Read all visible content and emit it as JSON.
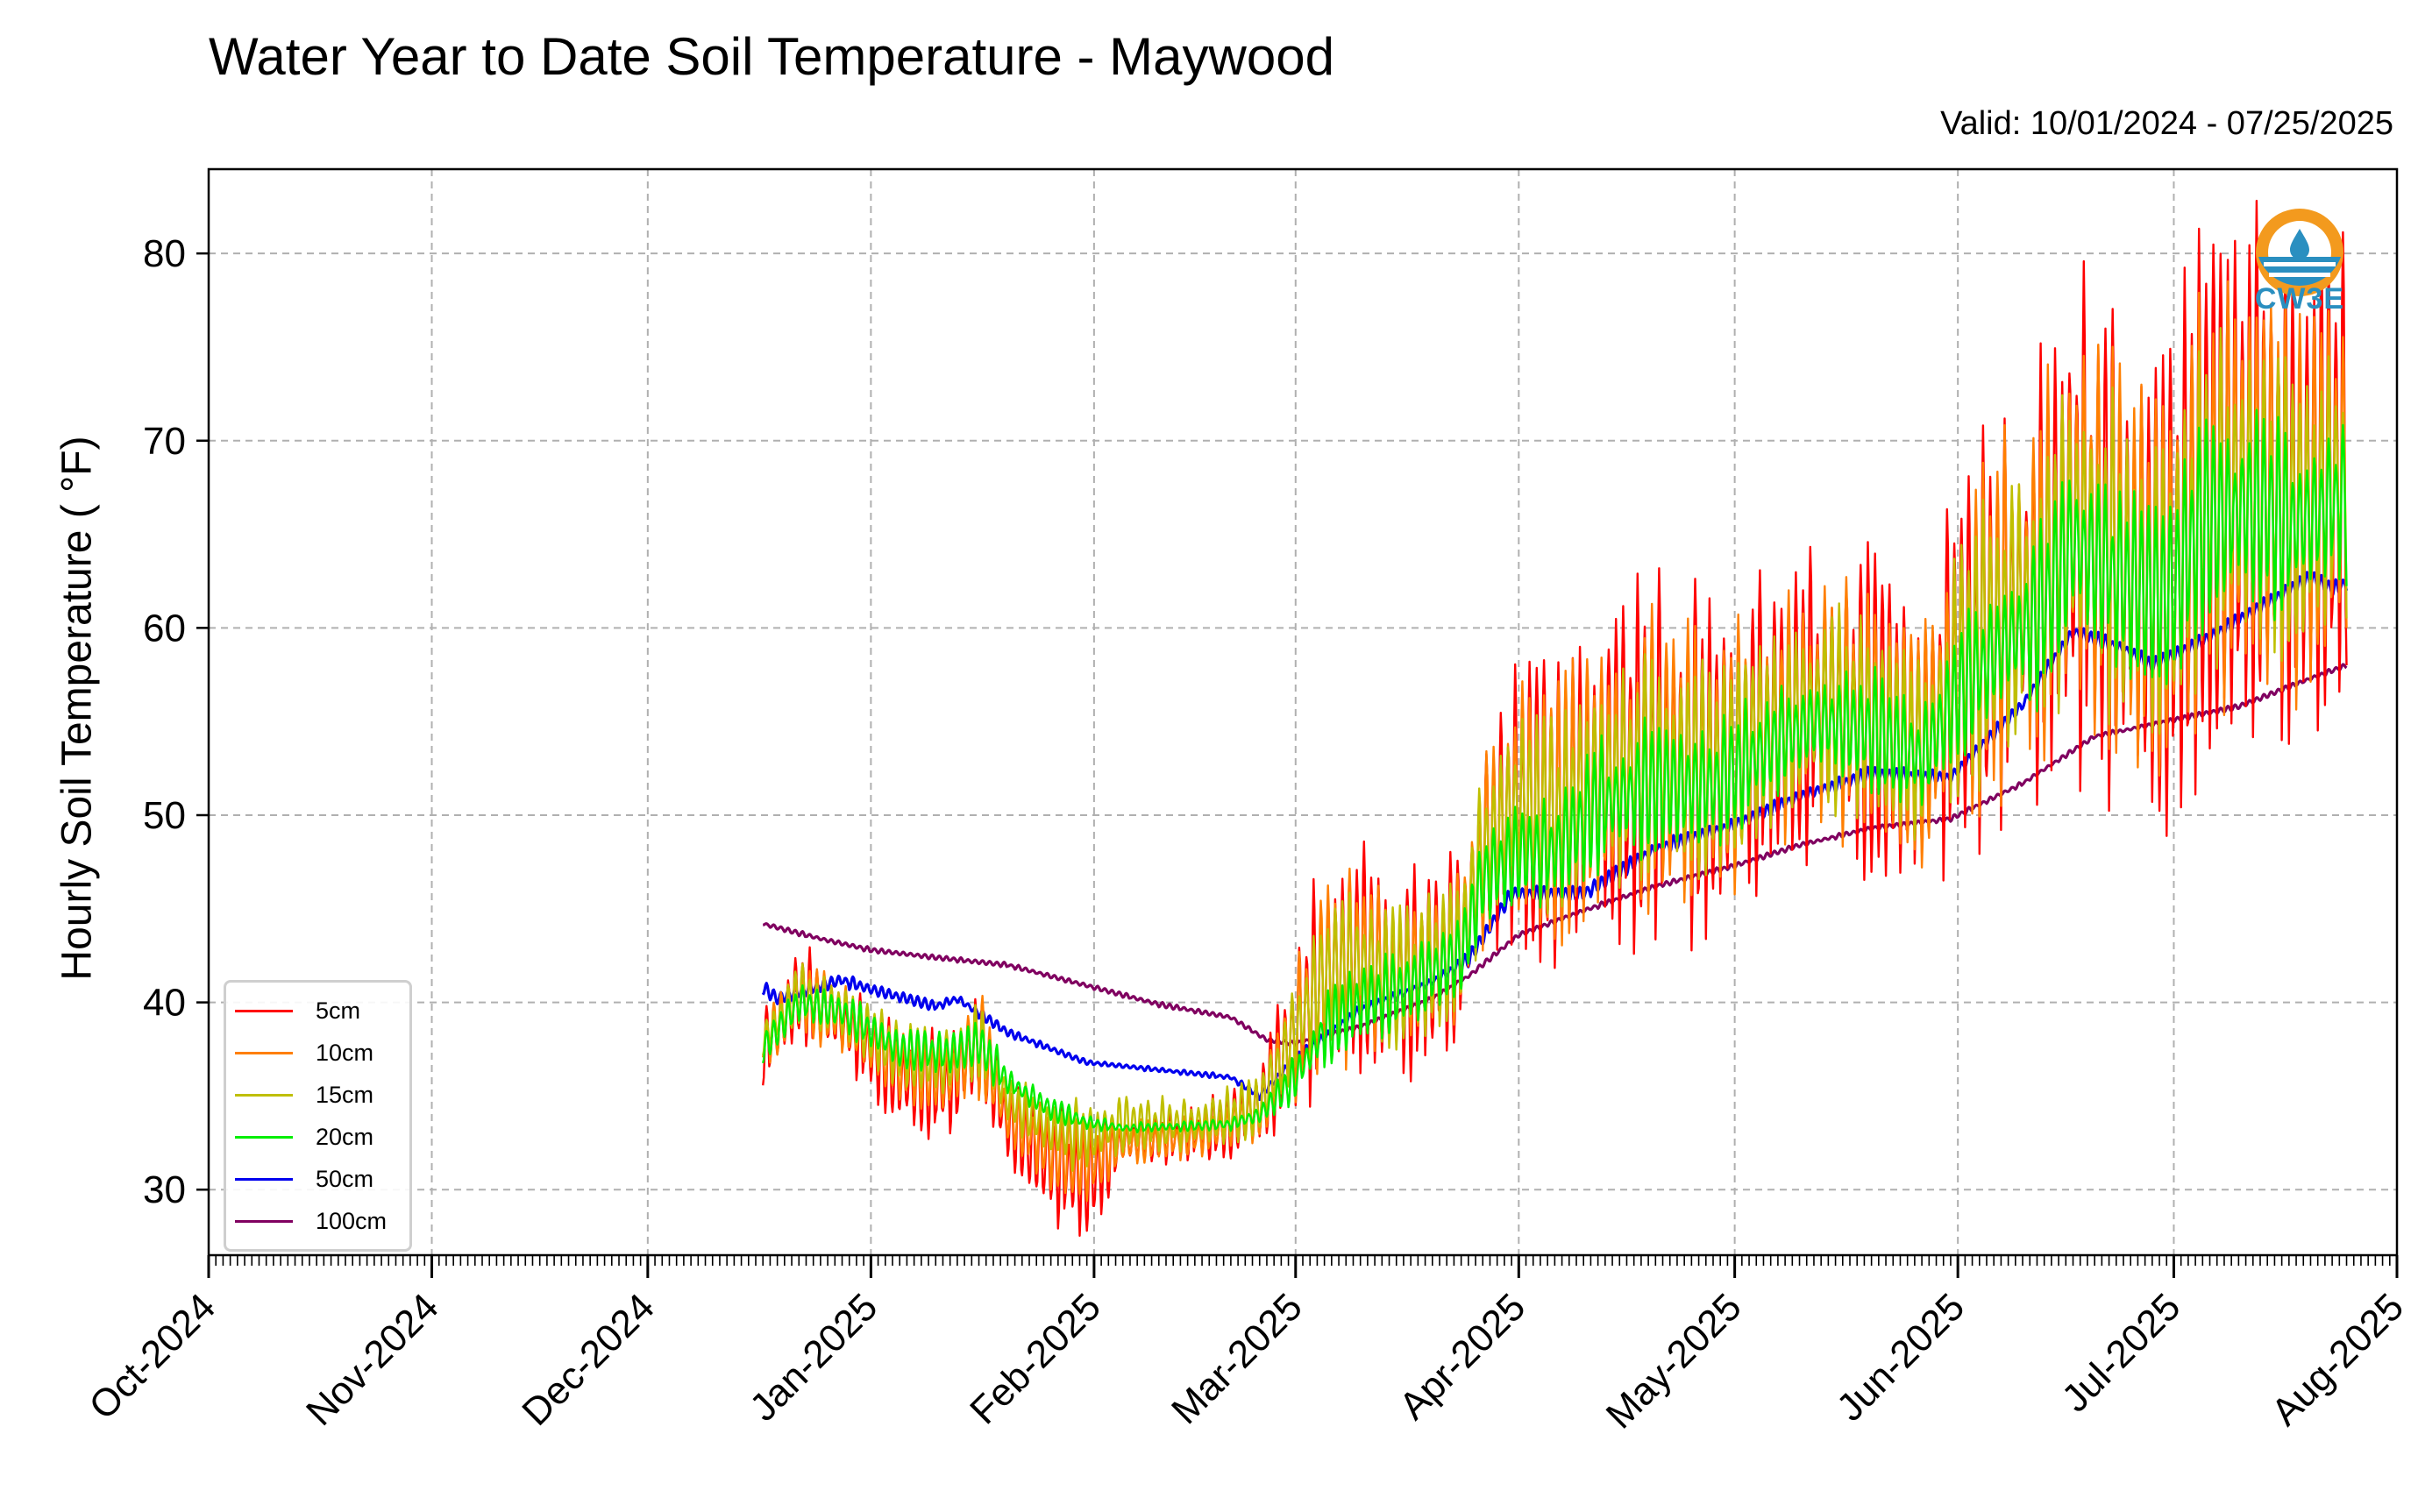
{
  "chart_data": {
    "type": "line",
    "title": "Water Year to Date Soil Temperature - Maywood",
    "subtitle": "Valid: 10/01/2024 - 07/25/2025",
    "ylabel": "Hourly Soil Temperature ( °F)",
    "xlabel": "",
    "x_range": [
      "2024-10-01",
      "2025-08-01"
    ],
    "ylim": [
      26.5,
      84.5
    ],
    "y_ticks": [
      30,
      40,
      50,
      60,
      70,
      80
    ],
    "x_tick_labels": [
      "Oct-2024",
      "Nov-2024",
      "Dec-2024",
      "Jan-2025",
      "Feb-2025",
      "Mar-2025",
      "Apr-2025",
      "May-2025",
      "Jun-2025",
      "Jul-2025",
      "Aug-2025"
    ],
    "x_ticks": [
      "2024-10-01",
      "2024-11-01",
      "2024-12-01",
      "2025-01-01",
      "2025-02-01",
      "2025-03-01",
      "2025-04-01",
      "2025-05-01",
      "2025-06-01",
      "2025-07-01",
      "2025-08-01"
    ],
    "grid": true,
    "legend_position": "lower-left",
    "series": [
      {
        "name": "5cm",
        "color": "#ff0000",
        "x": [
          "2024-12-17",
          "2024-12-22",
          "2024-12-28",
          "2025-01-05",
          "2025-01-12",
          "2025-01-16",
          "2025-01-20",
          "2025-01-26",
          "2025-01-31",
          "2025-02-05",
          "2025-02-15",
          "2025-02-20",
          "2025-02-24",
          "2025-03-01",
          "2025-03-05",
          "2025-03-10",
          "2025-03-15",
          "2025-03-20",
          "2025-03-24",
          "2025-03-27",
          "2025-04-01",
          "2025-04-06",
          "2025-04-12",
          "2025-04-20",
          "2025-04-28",
          "2025-05-05",
          "2025-05-12",
          "2025-05-20",
          "2025-05-27",
          "2025-06-01",
          "2025-06-07",
          "2025-06-12",
          "2025-06-17",
          "2025-06-24",
          "2025-06-30",
          "2025-07-05",
          "2025-07-12",
          "2025-07-18",
          "2025-07-25"
        ],
        "y": [
          37.5,
          40.5,
          39.0,
          36.0,
          35.5,
          38.0,
          33.5,
          31.5,
          30.5,
          32.5,
          33.0,
          33.5,
          34.5,
          38.5,
          41.5,
          42.5,
          41.0,
          42.0,
          43.0,
          48.0,
          51.0,
          50.0,
          52.0,
          53.0,
          52.5,
          54.5,
          56.0,
          55.5,
          53.5,
          58.0,
          60.5,
          62.0,
          66.0,
          63.5,
          62.0,
          67.0,
          68.0,
          66.5,
          69.0
        ],
        "amp": [
          1.5,
          2.0,
          2.0,
          2.0,
          2.0,
          3.0,
          1.5,
          2.5,
          2.5,
          1.0,
          1.0,
          1.5,
          1.5,
          3.5,
          4.5,
          5.0,
          4.0,
          4.0,
          4.0,
          5.0,
          5.5,
          6.0,
          7.0,
          7.5,
          7.0,
          6.5,
          6.0,
          6.5,
          5.5,
          7.5,
          8.5,
          9.0,
          10.0,
          9.5,
          9.0,
          10.5,
          10.5,
          9.5,
          9.0
        ]
      },
      {
        "name": "10cm",
        "color": "#ff7f00",
        "x": [
          "2024-12-17",
          "2024-12-22",
          "2024-12-28",
          "2025-01-05",
          "2025-01-12",
          "2025-01-16",
          "2025-01-20",
          "2025-01-26",
          "2025-01-31",
          "2025-02-05",
          "2025-02-15",
          "2025-02-20",
          "2025-02-24",
          "2025-03-01",
          "2025-03-05",
          "2025-03-10",
          "2025-03-15",
          "2025-03-20",
          "2025-03-24",
          "2025-03-27",
          "2025-04-01",
          "2025-04-06",
          "2025-04-12",
          "2025-04-20",
          "2025-04-28",
          "2025-05-05",
          "2025-05-12",
          "2025-05-20",
          "2025-05-27",
          "2025-06-01",
          "2025-06-07",
          "2025-06-12",
          "2025-06-17",
          "2025-06-24",
          "2025-06-30",
          "2025-07-05",
          "2025-07-12",
          "2025-07-18",
          "2025-07-25"
        ],
        "y": [
          37.8,
          40.3,
          39.2,
          36.5,
          36.0,
          38.0,
          34.0,
          32.2,
          31.5,
          32.5,
          32.8,
          33.5,
          34.3,
          38.5,
          41.5,
          42.3,
          41.2,
          42.0,
          43.0,
          48.0,
          50.8,
          50.0,
          52.0,
          53.0,
          52.5,
          54.5,
          56.0,
          55.5,
          53.5,
          58.0,
          60.5,
          62.0,
          66.0,
          63.5,
          62.0,
          67.0,
          68.0,
          66.5,
          68.5
        ],
        "amp": [
          1.2,
          1.5,
          1.5,
          1.5,
          1.5,
          2.2,
          1.2,
          1.8,
          1.8,
          0.8,
          0.8,
          1.2,
          1.2,
          2.8,
          3.5,
          3.8,
          3.2,
          3.2,
          3.2,
          4.0,
          4.5,
          4.8,
          5.5,
          6.0,
          5.5,
          5.2,
          4.8,
          5.2,
          4.4,
          6.0,
          6.8,
          7.2,
          8.0,
          7.6,
          7.2,
          8.4,
          8.4,
          7.6,
          7.2
        ]
      },
      {
        "name": "15cm",
        "color": "#bfbf00",
        "x": [
          "2024-12-17",
          "2024-12-22",
          "2024-12-28",
          "2025-01-05",
          "2025-01-12",
          "2025-01-16",
          "2025-01-20",
          "2025-01-26",
          "2025-01-31",
          "2025-02-05",
          "2025-02-15",
          "2025-02-20",
          "2025-02-24",
          "2025-03-01",
          "2025-03-05",
          "2025-03-10",
          "2025-03-15",
          "2025-03-20",
          "2025-03-24",
          "2025-03-27",
          "2025-04-01",
          "2025-04-06",
          "2025-04-12",
          "2025-04-20",
          "2025-04-28",
          "2025-05-05",
          "2025-05-12",
          "2025-05-20",
          "2025-05-27",
          "2025-06-01",
          "2025-06-07",
          "2025-06-12",
          "2025-06-17",
          "2025-06-24",
          "2025-06-30",
          "2025-07-05",
          "2025-07-12",
          "2025-07-18",
          "2025-07-25"
        ],
        "y": [
          38.0,
          40.5,
          39.5,
          37.2,
          36.8,
          38.0,
          34.8,
          33.2,
          32.8,
          33.5,
          33.5,
          34.0,
          34.5,
          38.5,
          41.5,
          42.0,
          41.3,
          42.0,
          43.0,
          48.0,
          50.5,
          49.8,
          51.8,
          52.8,
          52.3,
          54.2,
          55.7,
          55.2,
          53.3,
          57.7,
          60.2,
          61.7,
          65.5,
          63.2,
          61.8,
          66.5,
          67.5,
          66.0,
          68.0
        ],
        "amp": [
          1.0,
          1.2,
          1.2,
          1.2,
          1.2,
          1.8,
          1.0,
          1.4,
          1.4,
          1.2,
          1.0,
          1.4,
          1.2,
          2.2,
          2.8,
          3.0,
          2.6,
          2.6,
          2.6,
          3.2,
          3.6,
          3.8,
          4.4,
          4.8,
          4.4,
          4.2,
          3.8,
          4.2,
          3.5,
          4.8,
          5.4,
          5.8,
          6.4,
          6.0,
          5.8,
          6.7,
          6.7,
          6.1,
          5.8
        ]
      },
      {
        "name": "20cm",
        "color": "#00ee00",
        "x": [
          "2024-12-17",
          "2024-12-22",
          "2024-12-28",
          "2025-01-05",
          "2025-01-12",
          "2025-01-16",
          "2025-01-20",
          "2025-01-26",
          "2025-01-31",
          "2025-02-05",
          "2025-02-15",
          "2025-02-20",
          "2025-02-24",
          "2025-03-01",
          "2025-03-05",
          "2025-03-10",
          "2025-03-15",
          "2025-03-20",
          "2025-03-24",
          "2025-03-27",
          "2025-04-01",
          "2025-04-06",
          "2025-04-12",
          "2025-04-20",
          "2025-04-28",
          "2025-05-05",
          "2025-05-12",
          "2025-05-20",
          "2025-05-27",
          "2025-06-01",
          "2025-06-07",
          "2025-06-12",
          "2025-06-17",
          "2025-06-24",
          "2025-06-30",
          "2025-07-05",
          "2025-07-12",
          "2025-07-18",
          "2025-07-25"
        ],
        "y": [
          37.5,
          40.0,
          39.5,
          37.5,
          37.3,
          37.8,
          35.8,
          34.3,
          33.6,
          33.3,
          33.4,
          33.5,
          34.0,
          36.0,
          38.5,
          40.0,
          40.5,
          41.5,
          42.5,
          46.5,
          48.0,
          48.0,
          50.5,
          51.5,
          51.5,
          53.5,
          55.0,
          54.5,
          53.0,
          56.5,
          59.0,
          60.5,
          64.5,
          62.5,
          61.5,
          65.5,
          66.5,
          65.5,
          67.0
        ],
        "amp": [
          0.7,
          0.8,
          0.8,
          0.8,
          0.8,
          1.2,
          0.6,
          0.5,
          0.3,
          0.2,
          0.2,
          0.3,
          0.4,
          1.0,
          1.4,
          1.6,
          1.5,
          1.5,
          1.6,
          1.8,
          2.0,
          2.2,
          2.6,
          2.8,
          2.6,
          2.4,
          2.2,
          2.4,
          2.0,
          2.8,
          3.2,
          3.4,
          3.8,
          3.6,
          3.4,
          4.0,
          4.0,
          3.6,
          3.4
        ]
      },
      {
        "name": "50cm",
        "color": "#0000ee",
        "x": [
          "2024-12-17",
          "2024-12-19",
          "2024-12-28",
          "2025-01-01",
          "2025-01-10",
          "2025-01-13",
          "2025-01-20",
          "2025-01-31",
          "2025-02-10",
          "2025-02-20",
          "2025-02-24",
          "2025-03-01",
          "2025-03-10",
          "2025-03-20",
          "2025-03-25",
          "2025-03-31",
          "2025-04-10",
          "2025-04-20",
          "2025-05-01",
          "2025-05-10",
          "2025-05-20",
          "2025-05-31",
          "2025-06-05",
          "2025-06-10",
          "2025-06-17",
          "2025-06-24",
          "2025-06-28",
          "2025-07-05",
          "2025-07-12",
          "2025-07-20",
          "2025-07-23",
          "2025-07-25"
        ],
        "y": [
          40.8,
          40.2,
          41.2,
          40.7,
          39.8,
          40.2,
          38.4,
          36.8,
          36.4,
          36.0,
          35.0,
          37.0,
          39.6,
          41.1,
          42.3,
          45.8,
          45.8,
          48.2,
          49.5,
          51.0,
          52.2,
          52.0,
          54.0,
          55.9,
          59.8,
          58.9,
          58.0,
          59.3,
          60.9,
          62.7,
          62.1,
          62.4
        ],
        "amp": [
          0.3,
          0.2,
          0.3,
          0.2,
          0.2,
          0.2,
          0.2,
          0.1,
          0.1,
          0.1,
          0.2,
          0.2,
          0.2,
          0.2,
          0.3,
          0.3,
          0.3,
          0.3,
          0.3,
          0.3,
          0.3,
          0.3,
          0.3,
          0.3,
          0.3,
          0.3,
          0.3,
          0.3,
          0.3,
          0.3,
          0.3,
          0.3
        ]
      },
      {
        "name": "100cm",
        "color": "#800060",
        "x": [
          "2024-12-17",
          "2024-12-25",
          "2025-01-01",
          "2025-01-10",
          "2025-01-20",
          "2025-02-01",
          "2025-02-10",
          "2025-02-20",
          "2025-02-25",
          "2025-03-01",
          "2025-03-10",
          "2025-03-20",
          "2025-03-25",
          "2025-04-01",
          "2025-04-10",
          "2025-04-20",
          "2025-05-01",
          "2025-05-10",
          "2025-05-20",
          "2025-05-31",
          "2025-06-10",
          "2025-06-20",
          "2025-06-30",
          "2025-07-10",
          "2025-07-20",
          "2025-07-25"
        ],
        "y": [
          44.2,
          43.4,
          42.8,
          42.4,
          42.0,
          40.8,
          39.9,
          39.2,
          38.0,
          37.8,
          38.7,
          40.2,
          41.4,
          43.6,
          44.9,
          46.2,
          47.3,
          48.4,
          49.3,
          49.8,
          51.7,
          54.2,
          55.0,
          55.8,
          57.3,
          58.0
        ],
        "amp": [
          0.1,
          0.1,
          0.1,
          0.1,
          0.1,
          0.1,
          0.1,
          0.1,
          0.1,
          0.1,
          0.1,
          0.1,
          0.1,
          0.1,
          0.1,
          0.1,
          0.1,
          0.1,
          0.1,
          0.1,
          0.1,
          0.1,
          0.1,
          0.1,
          0.1,
          0.1
        ]
      }
    ]
  },
  "logo": {
    "text": "CW3E"
  }
}
